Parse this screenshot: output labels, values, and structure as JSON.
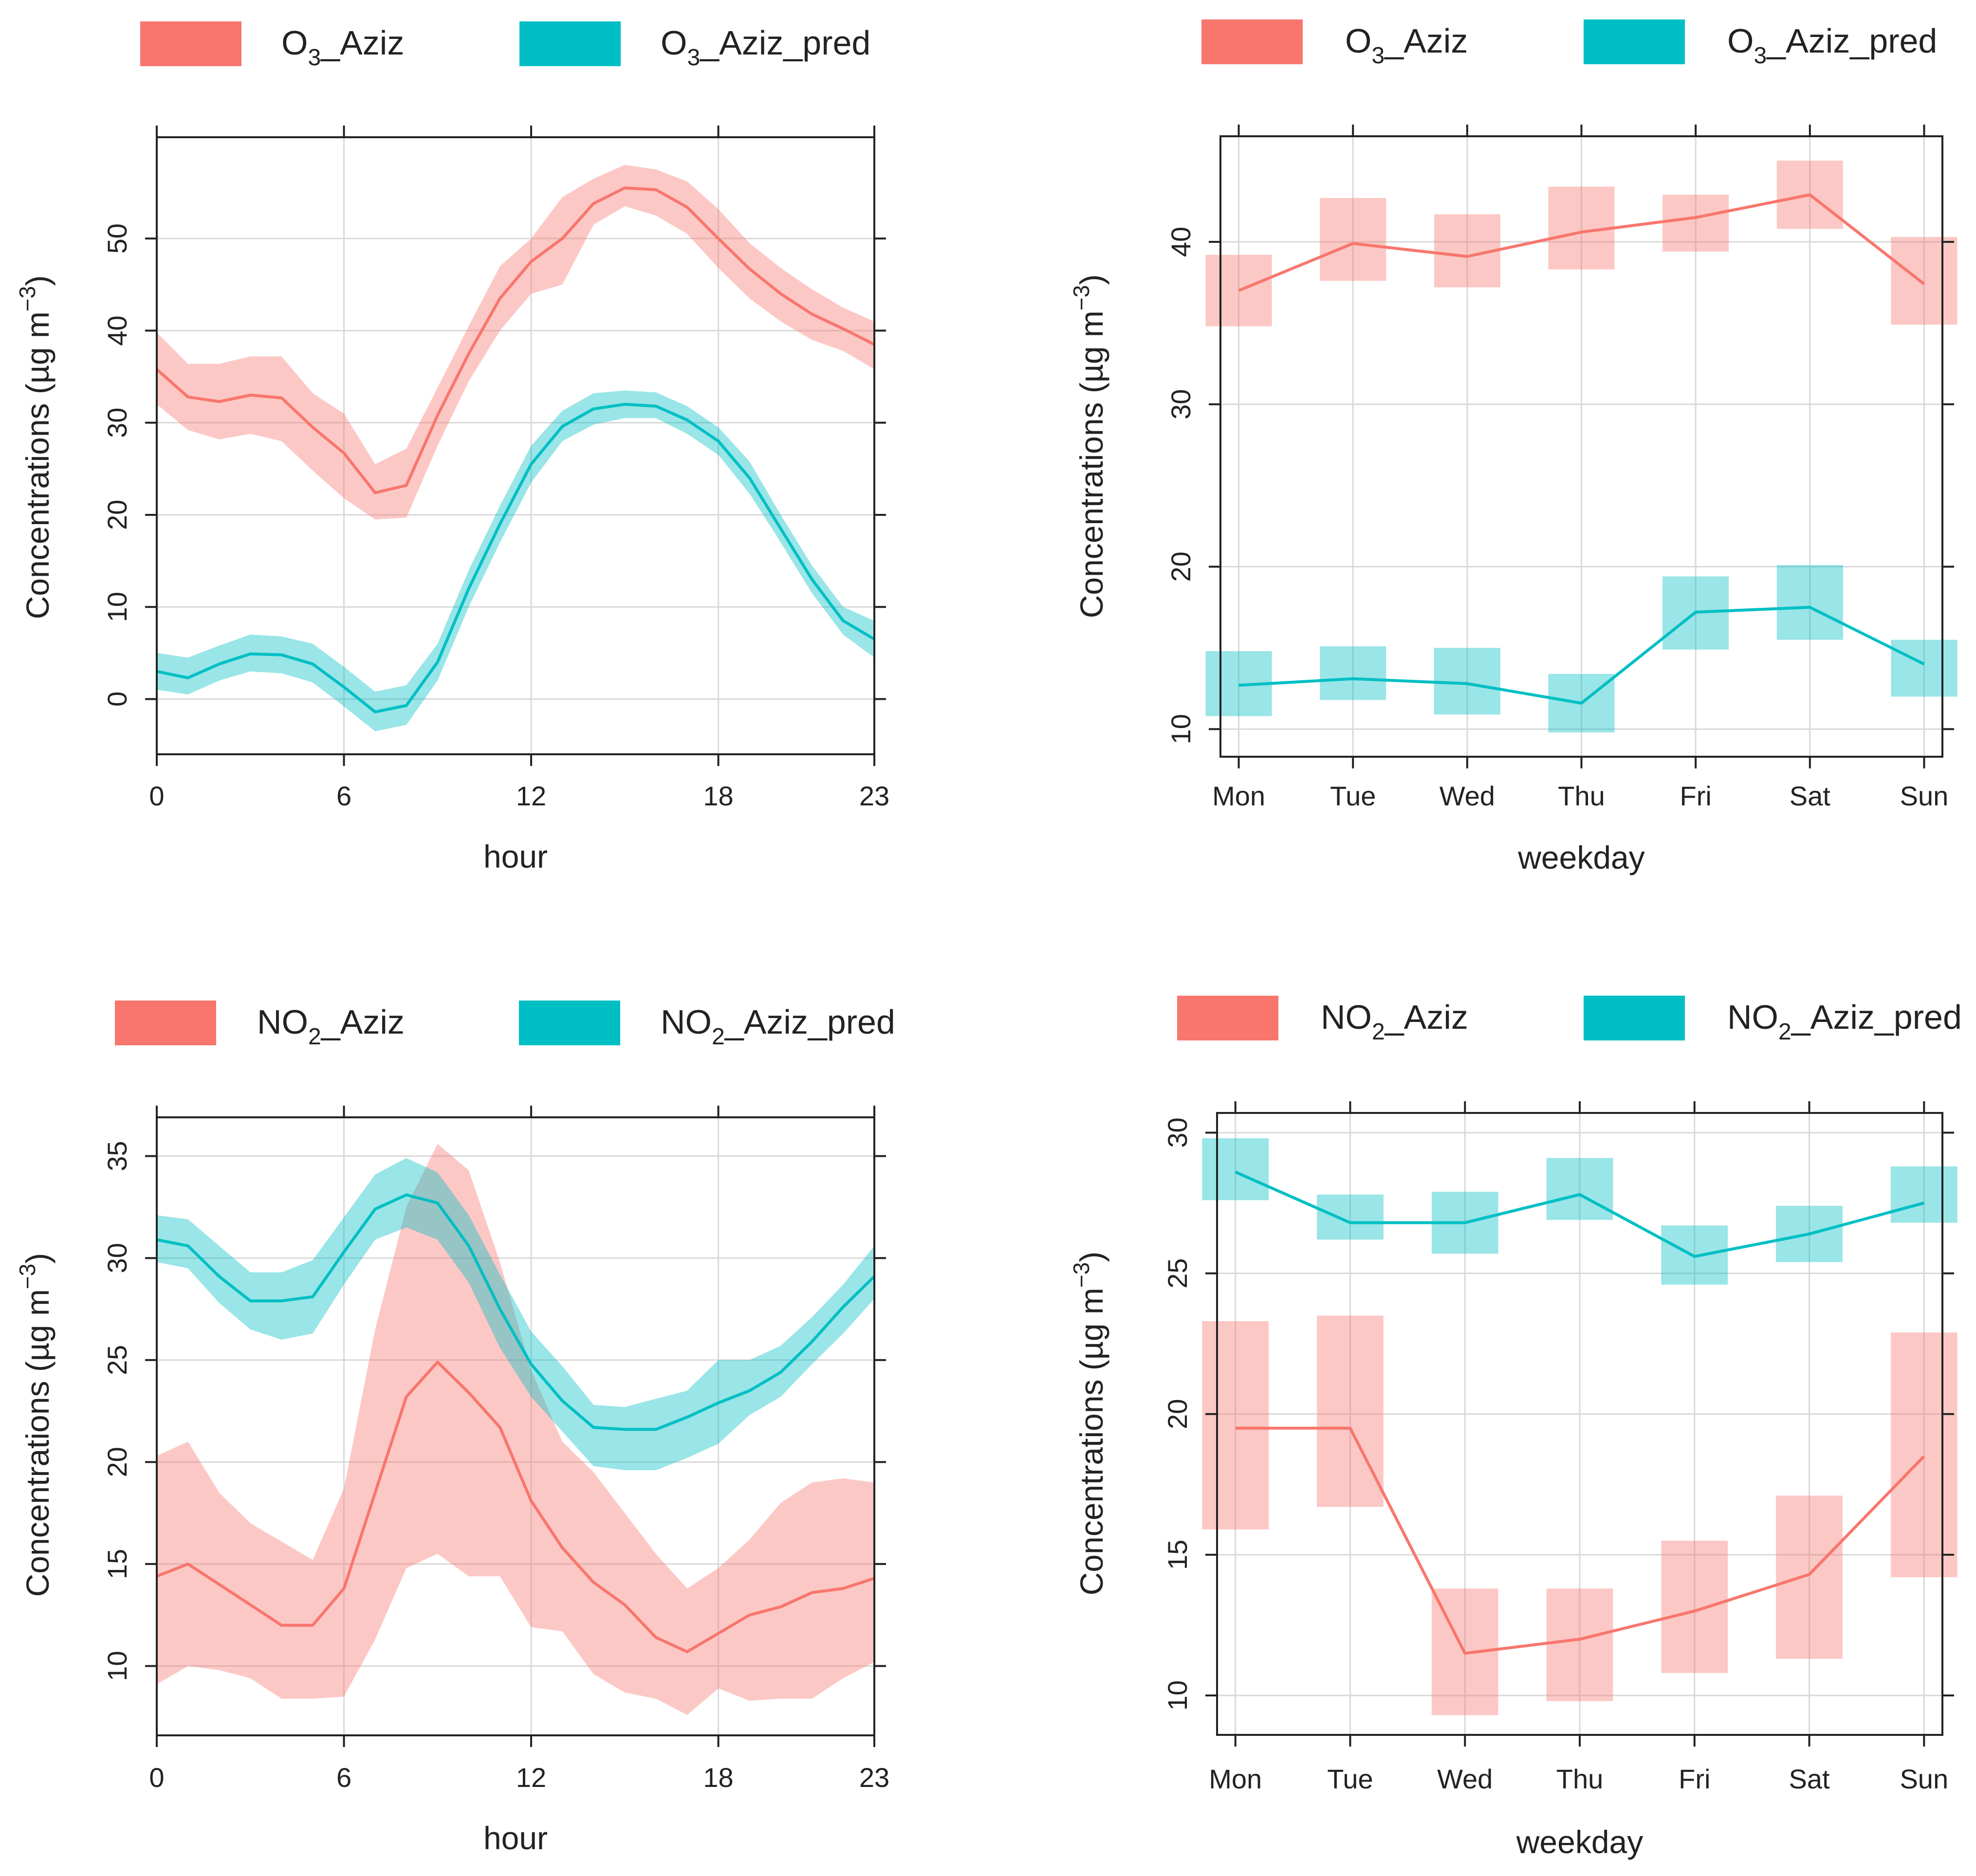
{
  "colors": {
    "observed": "#F8766D",
    "predicted": "#00BFC4"
  },
  "chart_data": [
    {
      "id": "o3-hour",
      "type": "line",
      "title": "",
      "legend": [
        {
          "pre": "O",
          "sub": "3",
          "post": "_Aziz"
        },
        {
          "pre": "O",
          "sub": "3",
          "post": "_Aziz_pred"
        }
      ],
      "xlabel": "hour",
      "ylabel": {
        "pre": "Concentrations (µg m",
        "sup": "−3",
        "post": ")"
      },
      "x_kind": "numeric",
      "xlim": [
        0,
        23
      ],
      "ylim": [
        -6,
        61
      ],
      "x_ticks": [
        0,
        6,
        12,
        18,
        23
      ],
      "y_ticks": [
        0,
        10,
        20,
        30,
        40,
        50
      ],
      "x": [
        0,
        1,
        2,
        3,
        4,
        5,
        6,
        7,
        8,
        9,
        10,
        11,
        12,
        13,
        14,
        15,
        16,
        17,
        18,
        19,
        20,
        21,
        22,
        23
      ],
      "series": [
        {
          "name": "O3_Aziz",
          "color_key": "observed",
          "values": [
            35.8,
            32.8,
            32.3,
            33,
            32.7,
            29.5,
            26.7,
            22.4,
            23.2,
            30.8,
            37.5,
            43.5,
            47.5,
            50,
            53.8,
            55.5,
            55.3,
            53.4,
            50,
            46.7,
            44,
            41.8,
            40.2,
            38.5
          ],
          "lower": [
            32,
            29.2,
            28.2,
            28.8,
            28,
            24.8,
            21.8,
            19.5,
            19.7,
            27.5,
            34.5,
            40,
            44,
            45,
            51.5,
            53.5,
            52.5,
            50.5,
            46.8,
            43.5,
            41,
            39,
            37.8,
            35.8
          ],
          "upper": [
            39.8,
            36.4,
            36.4,
            37.2,
            37.2,
            33.2,
            31,
            25.5,
            27.2,
            33.8,
            40.5,
            47,
            50,
            54.5,
            56.5,
            58,
            57.5,
            56.2,
            53.2,
            49.5,
            46.8,
            44.5,
            42.5,
            41
          ]
        },
        {
          "name": "O3_Aziz_pred",
          "color_key": "predicted",
          "values": [
            3,
            2.3,
            3.8,
            4.9,
            4.8,
            3.8,
            1.3,
            -1.4,
            -0.7,
            4,
            12,
            19,
            25.5,
            29.6,
            31.5,
            32,
            31.8,
            30.3,
            28,
            24,
            18.5,
            13,
            8.5,
            6.5
          ],
          "lower": [
            1,
            0.5,
            2,
            3,
            2.8,
            1.8,
            -0.8,
            -3.5,
            -2.8,
            2,
            10,
            17,
            23.5,
            28,
            29.8,
            30.5,
            30.5,
            28.8,
            26.5,
            22.3,
            17,
            11.5,
            7,
            4.5
          ],
          "upper": [
            5,
            4.5,
            5.8,
            7,
            6.8,
            6,
            3.5,
            0.8,
            1.5,
            6,
            14,
            21,
            27.5,
            31.3,
            33.2,
            33.5,
            33.3,
            31.8,
            29.5,
            25.8,
            20,
            14.5,
            10,
            8.5
          ]
        }
      ]
    },
    {
      "id": "o3-weekday",
      "type": "line",
      "title": "",
      "legend": [
        {
          "pre": "O",
          "sub": "3",
          "post": "_Aziz"
        },
        {
          "pre": "O",
          "sub": "3",
          "post": "_Aziz_pred"
        }
      ],
      "xlabel": "weekday",
      "ylabel": {
        "pre": "Concentrations (µg m",
        "sup": "−3",
        "post": ")"
      },
      "x_kind": "category",
      "categories": [
        "Mon",
        "Tue",
        "Wed",
        "Thu",
        "Fri",
        "Sat",
        "Sun"
      ],
      "ylim": [
        8.3,
        46.5
      ],
      "y_ticks": [
        10,
        20,
        30,
        40
      ],
      "series": [
        {
          "name": "O3_Aziz",
          "color_key": "observed",
          "values": [
            37,
            39.9,
            39.1,
            40.6,
            41.5,
            42.9,
            37.4
          ],
          "lower": [
            34.8,
            37.6,
            37.2,
            38.3,
            39.4,
            40.8,
            34.9
          ],
          "upper": [
            39.2,
            42.7,
            41.7,
            43.4,
            42.9,
            45,
            40.3
          ]
        },
        {
          "name": "O3_Aziz_pred",
          "color_key": "predicted",
          "values": [
            12.7,
            13.1,
            12.8,
            11.6,
            17.2,
            17.5,
            14
          ],
          "lower": [
            10.8,
            11.8,
            10.9,
            9.8,
            14.9,
            15.5,
            12
          ],
          "upper": [
            14.8,
            15.1,
            15,
            13.4,
            19.4,
            20.1,
            15.5
          ]
        }
      ]
    },
    {
      "id": "no2-hour",
      "type": "line",
      "title": "",
      "legend": [
        {
          "pre": "NO",
          "sub": "2",
          "post": "_Aziz"
        },
        {
          "pre": "NO",
          "sub": "2",
          "post": "_Aziz_pred"
        }
      ],
      "xlabel": "hour",
      "ylabel": {
        "pre": "Concentrations (µg m",
        "sup": "−3",
        "post": ")"
      },
      "x_kind": "numeric",
      "xlim": [
        0,
        23
      ],
      "ylim": [
        6.6,
        36.9
      ],
      "x_ticks": [
        0,
        6,
        12,
        18,
        23
      ],
      "y_ticks": [
        10,
        15,
        20,
        25,
        30,
        35
      ],
      "x": [
        0,
        1,
        2,
        3,
        4,
        5,
        6,
        7,
        8,
        9,
        10,
        11,
        12,
        13,
        14,
        15,
        16,
        17,
        18,
        19,
        20,
        21,
        22,
        23
      ],
      "series": [
        {
          "name": "NO2_Aziz",
          "color_key": "observed",
          "values": [
            14.4,
            15,
            14,
            13,
            12,
            12,
            13.8,
            18.5,
            23.2,
            24.9,
            23.4,
            21.7,
            18.1,
            15.8,
            14.1,
            13,
            11.4,
            10.7,
            11.6,
            12.5,
            12.9,
            13.6,
            13.8,
            14.3
          ],
          "lower": [
            9.1,
            10,
            9.8,
            9.4,
            8.4,
            8.4,
            8.5,
            11.3,
            14.8,
            15.5,
            14.4,
            14.4,
            11.9,
            11.7,
            9.6,
            8.7,
            8.4,
            7.6,
            8.9,
            8.3,
            8.4,
            8.4,
            9.4,
            10.2
          ],
          "upper": [
            20.3,
            21,
            18.5,
            17,
            16.1,
            15.2,
            18.7,
            26.5,
            32.5,
            35.6,
            34.3,
            29.8,
            24.5,
            21,
            19.5,
            17.5,
            15.5,
            13.8,
            14.8,
            16.2,
            18,
            19,
            19.2,
            19
          ]
        },
        {
          "name": "NO2_Aziz_pred",
          "color_key": "predicted",
          "values": [
            30.9,
            30.6,
            29.1,
            27.9,
            27.9,
            28.1,
            30.3,
            32.4,
            33.1,
            32.7,
            30.6,
            27.5,
            24.8,
            23,
            21.7,
            21.6,
            21.6,
            22.2,
            22.9,
            23.5,
            24.4,
            25.9,
            27.6,
            29.1
          ],
          "lower": [
            29.8,
            29.5,
            27.8,
            26.5,
            26,
            26.3,
            28.7,
            30.9,
            31.5,
            30.9,
            28.8,
            25.6,
            23.2,
            21.5,
            19.8,
            19.6,
            19.6,
            20.2,
            20.9,
            22.3,
            23.2,
            24.8,
            26.3,
            28
          ],
          "upper": [
            32.1,
            31.9,
            30.6,
            29.3,
            29.3,
            29.9,
            32,
            34.1,
            34.9,
            34.2,
            32.1,
            29.2,
            26.4,
            24.7,
            22.8,
            22.7,
            23.1,
            23.5,
            25,
            25,
            25.7,
            27.1,
            28.7,
            30.6
          ]
        }
      ]
    },
    {
      "id": "no2-weekday",
      "type": "line",
      "title": "",
      "legend": [
        {
          "pre": "NO",
          "sub": "2",
          "post": "_Aziz"
        },
        {
          "pre": "NO",
          "sub": "2",
          "post": "_Aziz_pred"
        }
      ],
      "xlabel": "weekday",
      "ylabel": {
        "pre": "Concentrations (µg m",
        "sup": "−3",
        "post": ")"
      },
      "x_kind": "category",
      "categories": [
        "Mon",
        "Tue",
        "Wed",
        "Thu",
        "Fri",
        "Sat",
        "Sun"
      ],
      "ylim": [
        8.6,
        30.7
      ],
      "y_ticks": [
        10,
        15,
        20,
        25,
        30
      ],
      "series": [
        {
          "name": "NO2_Aziz",
          "color_key": "observed",
          "values": [
            19.5,
            19.5,
            11.5,
            12,
            13,
            14.3,
            18.5
          ],
          "lower": [
            15.9,
            16.7,
            9.3,
            9.8,
            10.8,
            11.3,
            14.2
          ],
          "upper": [
            23.3,
            23.5,
            13.8,
            13.8,
            15.5,
            17.1,
            22.9
          ]
        },
        {
          "name": "NO2_Aziz_pred",
          "color_key": "predicted",
          "values": [
            28.6,
            26.8,
            26.8,
            27.8,
            25.6,
            26.4,
            27.5
          ],
          "lower": [
            27.6,
            26.2,
            25.7,
            26.9,
            24.6,
            25.4,
            26.8
          ],
          "upper": [
            29.8,
            27.8,
            27.9,
            29.1,
            26.7,
            27.4,
            28.8
          ]
        }
      ]
    }
  ]
}
